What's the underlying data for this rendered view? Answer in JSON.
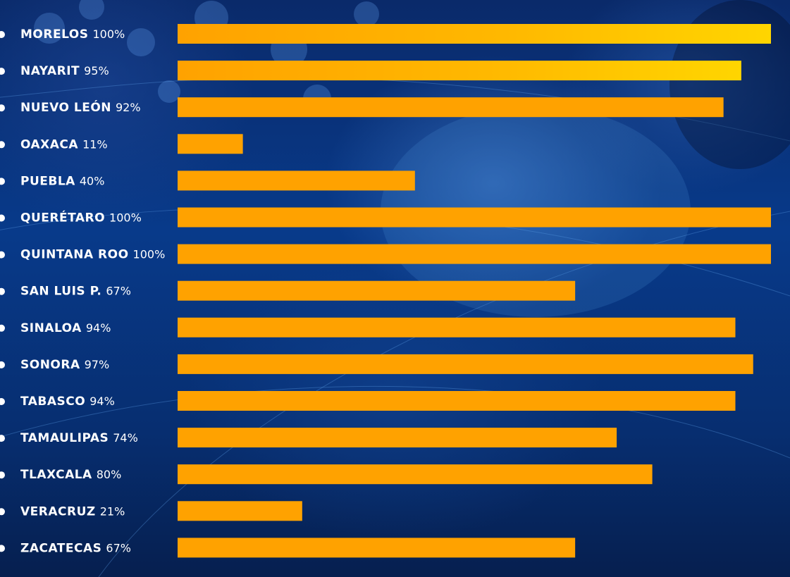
{
  "chart_data": {
    "type": "bar",
    "orientation": "horizontal",
    "categories": [
      "MORELOS",
      "NAYARIT",
      "NUEVO LEÓN",
      "OAXACA",
      "PUEBLA",
      "QUERÉTARO",
      "QUINTANA ROO",
      "SAN LUIS P.",
      "SINALOA",
      "SONORA",
      "TABASCO",
      "TAMAULIPAS",
      "TLAXCALA",
      "VERACRUZ",
      "ZACATECAS"
    ],
    "value_labels": [
      "100%",
      "95%",
      "92%",
      "11%",
      "40%",
      "100%",
      "100%",
      "67%",
      "94%",
      "97%",
      "94%",
      "74%",
      "80%",
      "21%",
      "67%"
    ],
    "values": [
      100,
      95,
      92,
      11,
      40,
      100,
      100,
      67,
      94,
      97,
      94,
      74,
      80,
      21,
      67
    ],
    "xlim": [
      0,
      100
    ],
    "grid": false,
    "legend": "none",
    "colors": {
      "bar": "#FFA200",
      "bar_highlight_end": "#FFD500",
      "label": "#FFFFFF",
      "bullet": "#FFFFFF"
    },
    "highlighted": [
      "MORELOS",
      "NAYARIT"
    ]
  }
}
